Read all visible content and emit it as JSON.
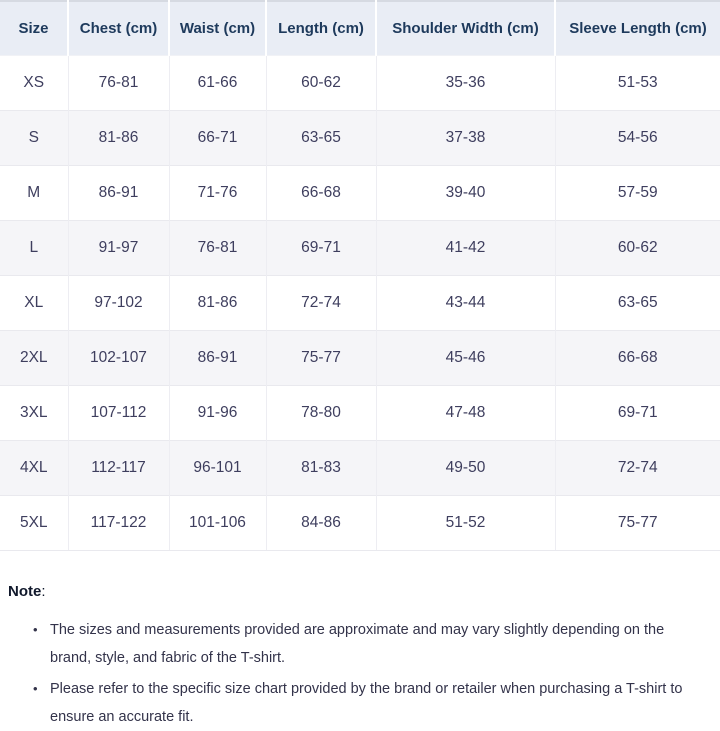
{
  "table": {
    "columns": [
      "Size",
      "Chest (cm)",
      "Waist (cm)",
      "Length (cm)",
      "Shoulder Width (cm)",
      "Sleeve Length (cm)"
    ],
    "rows": [
      [
        "XS",
        "76-81",
        "61-66",
        "60-62",
        "35-36",
        "51-53"
      ],
      [
        "S",
        "81-86",
        "66-71",
        "63-65",
        "37-38",
        "54-56"
      ],
      [
        "M",
        "86-91",
        "71-76",
        "66-68",
        "39-40",
        "57-59"
      ],
      [
        "L",
        "91-97",
        "76-81",
        "69-71",
        "41-42",
        "60-62"
      ],
      [
        "XL",
        "97-102",
        "81-86",
        "72-74",
        "43-44",
        "63-65"
      ],
      [
        "2XL",
        "102-107",
        "86-91",
        "75-77",
        "45-46",
        "66-68"
      ],
      [
        "3XL",
        "107-112",
        "91-96",
        "78-80",
        "47-48",
        "69-71"
      ],
      [
        "4XL",
        "112-117",
        "96-101",
        "81-83",
        "49-50",
        "72-74"
      ],
      [
        "5XL",
        "117-122",
        "101-106",
        "84-86",
        "51-52",
        "75-77"
      ]
    ]
  },
  "note": {
    "label": "Note",
    "colon": ":",
    "items": [
      "The sizes and measurements provided are approximate and may vary slightly depending on the brand, style, and fabric of the T-shirt.",
      "Please refer to the specific size chart provided by the brand or retailer when purchasing a T-shirt to ensure an accurate fit."
    ]
  },
  "colors": {
    "header_bg": "#e9edf5",
    "header_text": "#1e3a5c",
    "cell_text": "#3e3e5e",
    "row_alt_bg": "#f5f5f8",
    "note_text": "#33334a"
  }
}
